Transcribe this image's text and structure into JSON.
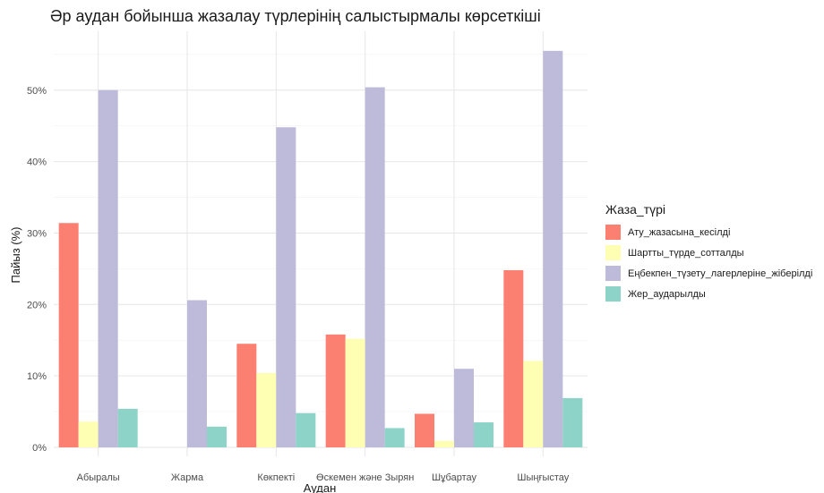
{
  "chart_data": {
    "type": "bar",
    "title": "Әр аудан бойынша жазалау түрлерінің салыстырмалы көрсеткіші",
    "xlabel": "Аудан",
    "ylabel": "Пайыз (%)",
    "ylim": [
      0,
      57
    ],
    "yticks": [
      0,
      10,
      20,
      30,
      40,
      50
    ],
    "ytick_labels": [
      "0%",
      "10%",
      "20%",
      "30%",
      "40%",
      "50%"
    ],
    "grid": true,
    "legend_position": "right",
    "legend_title": "Жаза_түрі",
    "categories": [
      "Абыралы",
      "Жарма",
      "Көкпекті",
      "Өскемен және Зырян",
      "Шұбартау",
      "Шыңғыстау"
    ],
    "series": [
      {
        "name": "Ату_жазасына_кесілді",
        "color": "#fb8072",
        "values": [
          31.4,
          0,
          14.5,
          15.8,
          4.7,
          24.8
        ]
      },
      {
        "name": "Шартты_түрде_сотталды",
        "color": "#ffffb3",
        "values": [
          3.6,
          0,
          10.4,
          15.2,
          0.9,
          12.1
        ]
      },
      {
        "name": "Еңбекпен_түзету_лагерлеріне_жіберілді",
        "color": "#bebada",
        "values": [
          50.0,
          20.6,
          44.8,
          50.4,
          11.0,
          55.5
        ]
      },
      {
        "name": "Жер_аударылды",
        "color": "#8dd3c7",
        "values": [
          5.4,
          2.9,
          4.8,
          2.7,
          3.5,
          6.9
        ]
      }
    ]
  }
}
